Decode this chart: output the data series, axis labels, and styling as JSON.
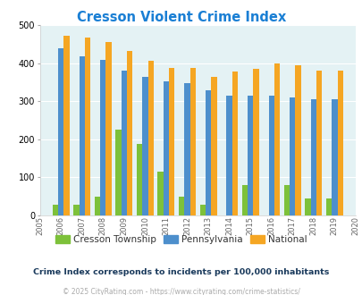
{
  "title": "Cresson Violent Crime Index",
  "years": [
    2006,
    2007,
    2008,
    2009,
    2010,
    2011,
    2012,
    2013,
    2014,
    2015,
    2016,
    2017,
    2018,
    2019
  ],
  "cresson": [
    28,
    28,
    50,
    225,
    188,
    115,
    50,
    28,
    0,
    80,
    0,
    80,
    45,
    45
  ],
  "pennsylvania": [
    440,
    417,
    408,
    380,
    365,
    352,
    348,
    328,
    314,
    314,
    314,
    311,
    305,
    305
  ],
  "national": [
    472,
    467,
    455,
    432,
    406,
    388,
    388,
    365,
    378,
    384,
    398,
    394,
    380,
    380
  ],
  "cresson_color": "#7dc13a",
  "pa_color": "#4d8fcc",
  "national_color": "#f5a623",
  "bg_color": "#e4f2f4",
  "ylim": [
    0,
    500
  ],
  "yticks": [
    0,
    100,
    200,
    300,
    400,
    500
  ],
  "xlim_min": 2005,
  "xlim_max": 2020,
  "subtitle": "Crime Index corresponds to incidents per 100,000 inhabitants",
  "footer": "© 2025 CityRating.com - https://www.cityrating.com/crime-statistics/",
  "title_color": "#1a7fd4",
  "subtitle_color": "#1a3a5c",
  "footer_color": "#aaaaaa",
  "footer_link_color": "#4d8fcc",
  "legend_labels": [
    "Cresson Township",
    "Pennsylvania",
    "National"
  ],
  "legend_text_color": "#333333",
  "bar_width": 0.27
}
